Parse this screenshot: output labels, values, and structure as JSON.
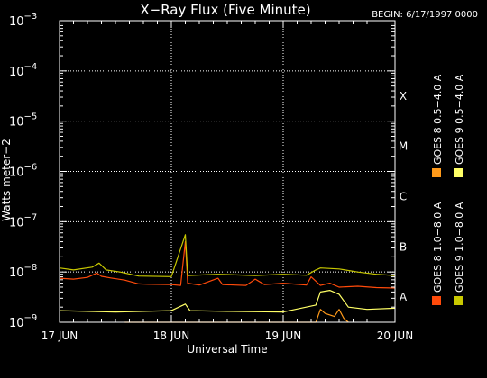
{
  "chart_data": {
    "type": "line",
    "title": "X−Ray Flux (Five Minute)",
    "begin_label": "BEGIN: 6/17/1997 0000",
    "xlabel": "Universal Time",
    "ylabel": "Watts meter−2",
    "y_scale": "log",
    "ylim": [
      1e-09,
      0.001
    ],
    "y_ticks": [
      {
        "base": "10",
        "exp": "−3",
        "value": 0.001
      },
      {
        "base": "10",
        "exp": "−4",
        "value": 0.0001
      },
      {
        "base": "10",
        "exp": "−5",
        "value": 1e-05
      },
      {
        "base": "10",
        "exp": "−6",
        "value": 1e-06
      },
      {
        "base": "10",
        "exp": "−7",
        "value": 1e-07
      },
      {
        "base": "10",
        "exp": "−8",
        "value": 1e-08
      },
      {
        "base": "10",
        "exp": "−9",
        "value": 1e-09
      }
    ],
    "xlim": [
      "1997-06-17 00:00",
      "1997-06-20 00:00"
    ],
    "x_ticks": [
      {
        "label": "17 JUN",
        "value": "1997-06-17"
      },
      {
        "label": "18 JUN",
        "value": "1997-06-18"
      },
      {
        "label": "19 JUN",
        "value": "1997-06-19"
      },
      {
        "label": "20 JUN",
        "value": "1997-06-20"
      }
    ],
    "flare_classes": [
      {
        "label": "X",
        "value": 0.0001
      },
      {
        "label": "M",
        "value": 1e-05
      },
      {
        "label": "C",
        "value": 1e-06
      },
      {
        "label": "B",
        "value": 1e-07
      },
      {
        "label": "A",
        "value": 1e-08
      }
    ],
    "grid": "dotted",
    "legend_position": "right, vertical",
    "series": [
      {
        "name": "GOES 8 1.0−8.0 A",
        "color": "#ff4a0a",
        "points": [
          [
            "1997-06-17 00:00",
            7.5e-09
          ],
          [
            "1997-06-17 03:00",
            7.2e-09
          ],
          [
            "1997-06-17 06:00",
            7.8e-09
          ],
          [
            "1997-06-17 08:00",
            9.5e-09
          ],
          [
            "1997-06-17 09:00",
            8.2e-09
          ],
          [
            "1997-06-17 11:00",
            7.6e-09
          ],
          [
            "1997-06-17 14:00",
            6.9e-09
          ],
          [
            "1997-06-17 17:00",
            5.8e-09
          ],
          [
            "1997-06-17 19:00",
            5.7e-09
          ],
          [
            "1997-06-18 00:00",
            5.6e-09
          ],
          [
            "1997-06-18 02:00",
            5.4e-09
          ],
          [
            "1997-06-18 03:00",
            4e-08
          ],
          [
            "1997-06-18 03:30",
            6e-09
          ],
          [
            "1997-06-18 06:00",
            5.5e-09
          ],
          [
            "1997-06-18 10:00",
            7.5e-09
          ],
          [
            "1997-06-18 11:00",
            5.6e-09
          ],
          [
            "1997-06-18 16:00",
            5.4e-09
          ],
          [
            "1997-06-18 18:00",
            7.2e-09
          ],
          [
            "1997-06-18 20:00",
            5.6e-09
          ],
          [
            "1997-06-19 00:00",
            6e-09
          ],
          [
            "1997-06-19 05:00",
            5.5e-09
          ],
          [
            "1997-06-19 06:00",
            8e-09
          ],
          [
            "1997-06-19 08:00",
            5.4e-09
          ],
          [
            "1997-06-19 10:00",
            6e-09
          ],
          [
            "1997-06-19 12:00",
            5e-09
          ],
          [
            "1997-06-19 16:00",
            5.2e-09
          ],
          [
            "1997-06-19 20:00",
            4.9e-09
          ],
          [
            "1997-06-20 00:00",
            4.8e-09
          ]
        ]
      },
      {
        "name": "GOES 8 0.5−4.0 A",
        "color": "#ff9a1a",
        "points": [
          [
            "1997-06-17 14:00",
            1e-09
          ],
          [
            "1997-06-17 14:30",
            1e-09
          ],
          [
            "1997-06-19 07:00",
            1e-09
          ],
          [
            "1997-06-19 08:00",
            1.8e-09
          ],
          [
            "1997-06-19 09:00",
            1.5e-09
          ],
          [
            "1997-06-19 11:00",
            1.3e-09
          ],
          [
            "1997-06-19 12:00",
            1.8e-09
          ],
          [
            "1997-06-19 13:00",
            1.2e-09
          ],
          [
            "1997-06-19 14:00",
            1e-09
          ]
        ]
      },
      {
        "name": "GOES 9 1.0−8.0 A",
        "color": "#c8c800",
        "points": [
          [
            "1997-06-17 00:00",
            1.2e-08
          ],
          [
            "1997-06-17 03:00",
            1.1e-08
          ],
          [
            "1997-06-17 07:00",
            1.25e-08
          ],
          [
            "1997-06-17 08:30",
            1.5e-08
          ],
          [
            "1997-06-17 10:00",
            1.1e-08
          ],
          [
            "1997-06-17 13:00",
            1e-08
          ],
          [
            "1997-06-17 17:00",
            8.3e-09
          ],
          [
            "1997-06-18 00:00",
            8.1e-09
          ],
          [
            "1997-06-18 03:00",
            5.5e-08
          ],
          [
            "1997-06-18 03:30",
            8.5e-09
          ],
          [
            "1997-06-18 10:00",
            9e-09
          ],
          [
            "1997-06-18 18:00",
            8.5e-09
          ],
          [
            "1997-06-19 00:00",
            9e-09
          ],
          [
            "1997-06-19 05:00",
            8.6e-09
          ],
          [
            "1997-06-19 07:00",
            1.1e-08
          ],
          [
            "1997-06-19 08:00",
            1.2e-08
          ],
          [
            "1997-06-19 12:00",
            1.15e-08
          ],
          [
            "1997-06-19 16:00",
            1e-08
          ],
          [
            "1997-06-19 20:00",
            9e-09
          ],
          [
            "1997-06-20 00:00",
            8.5e-09
          ]
        ]
      },
      {
        "name": "GOES 9 0.5−4.0 A",
        "color": "#ffff66",
        "points": [
          [
            "1997-06-17 00:00",
            1.7e-09
          ],
          [
            "1997-06-17 12:00",
            1.6e-09
          ],
          [
            "1997-06-18 00:00",
            1.7e-09
          ],
          [
            "1997-06-18 03:00",
            2.3e-09
          ],
          [
            "1997-06-18 04:00",
            1.7e-09
          ],
          [
            "1997-06-18 12:00",
            1.65e-09
          ],
          [
            "1997-06-19 00:00",
            1.6e-09
          ],
          [
            "1997-06-19 07:00",
            2.2e-09
          ],
          [
            "1997-06-19 08:00",
            4e-09
          ],
          [
            "1997-06-19 10:00",
            4.3e-09
          ],
          [
            "1997-06-19 12:00",
            3.6e-09
          ],
          [
            "1997-06-19 14:00",
            2e-09
          ],
          [
            "1997-06-19 18:00",
            1.8e-09
          ],
          [
            "1997-06-20 00:00",
            1.9e-09
          ]
        ]
      }
    ]
  }
}
